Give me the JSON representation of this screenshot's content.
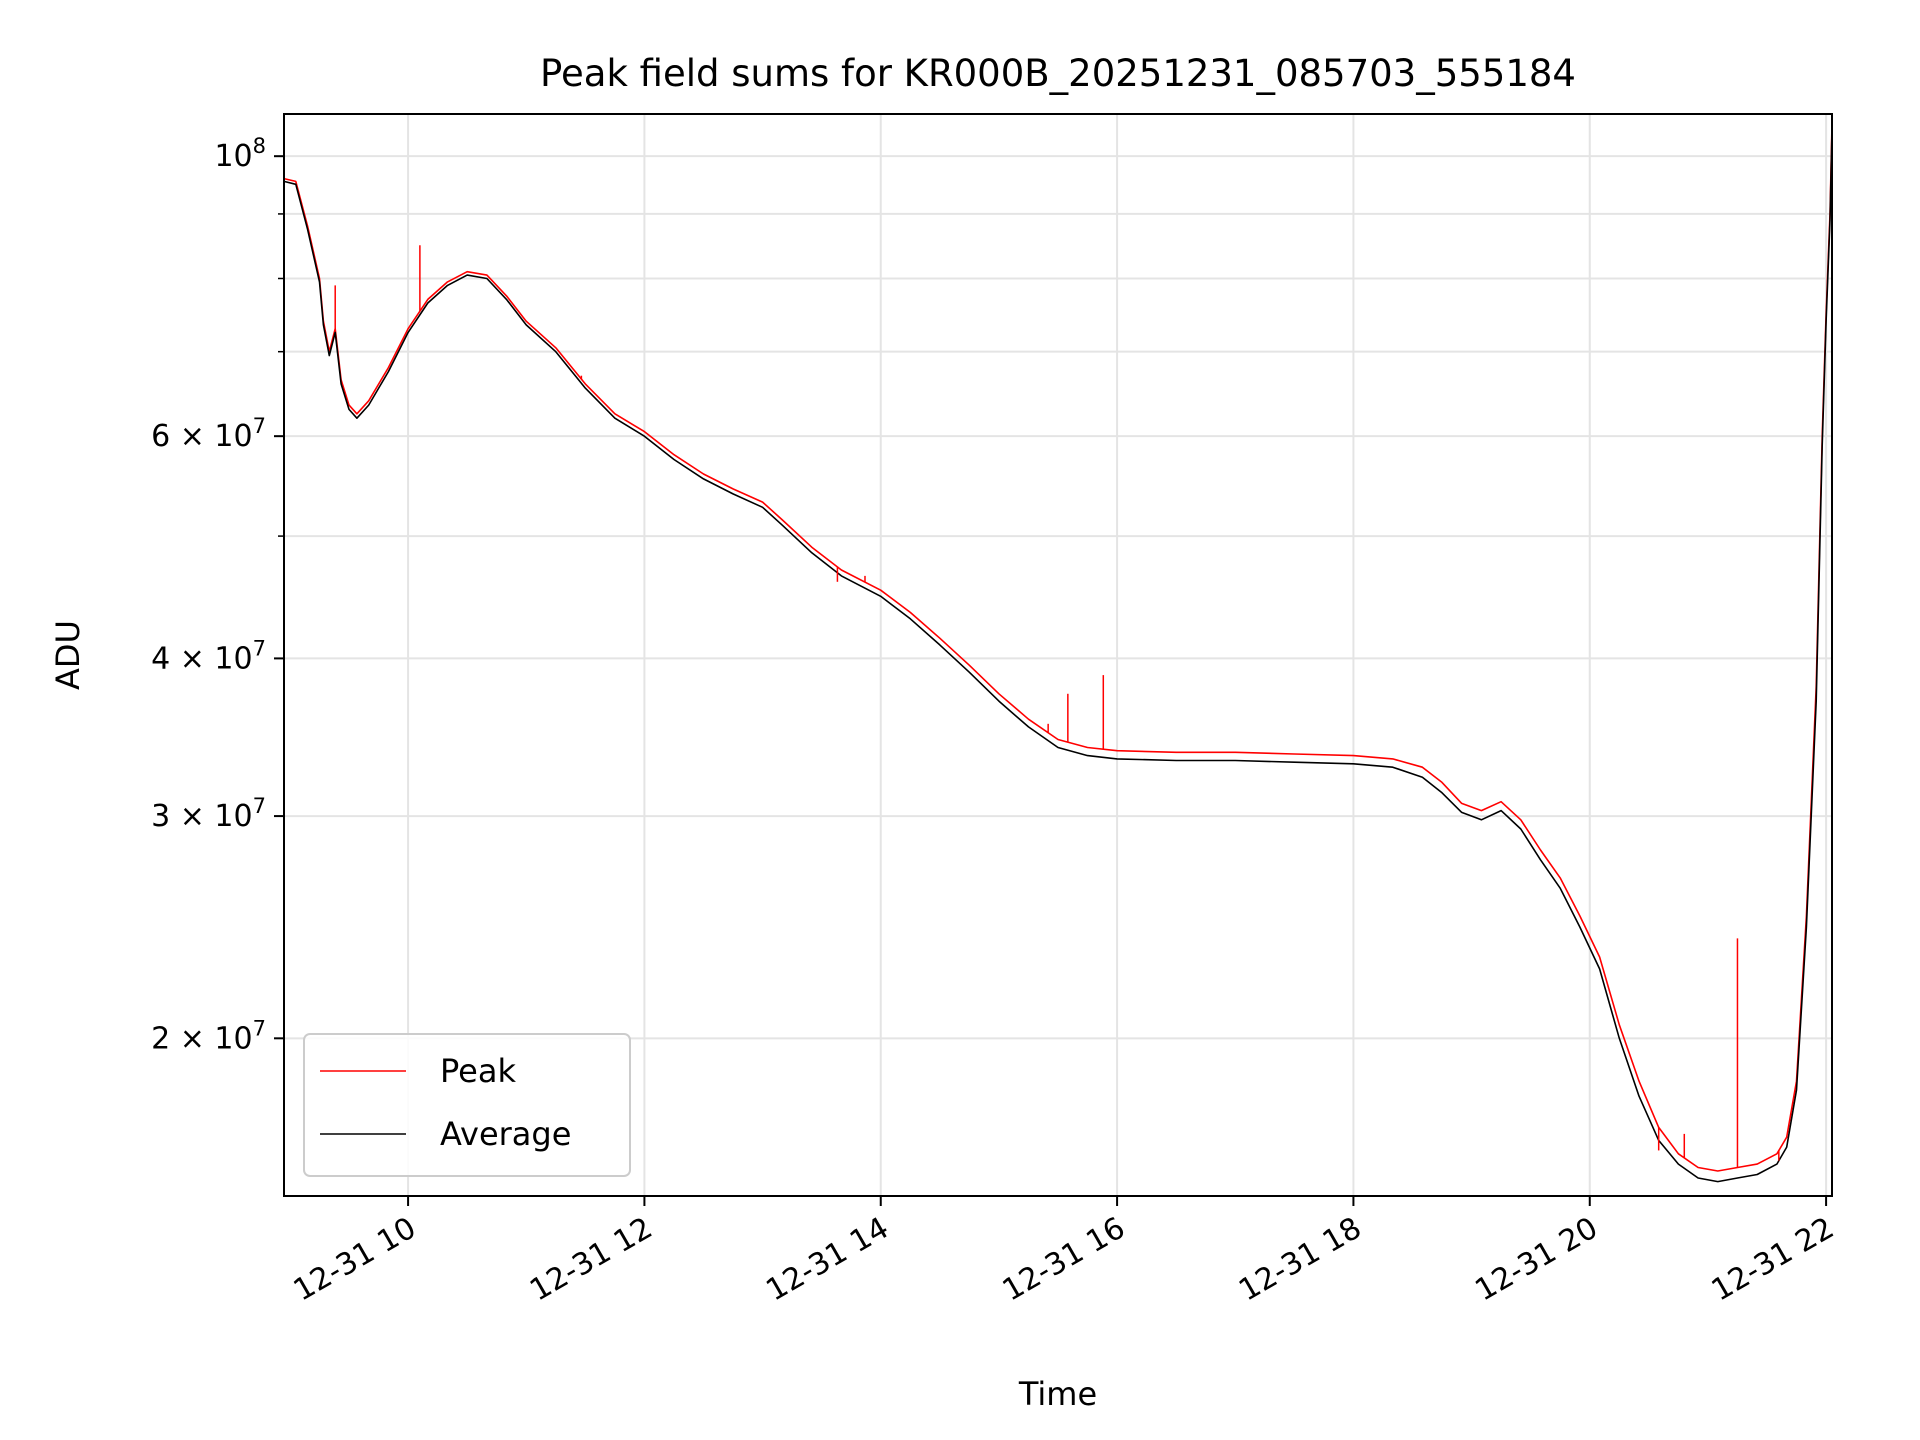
{
  "chart_data": {
    "type": "line",
    "title": "Peak field sums for KR000B_20251231_085703_555184",
    "xlabel": "Time",
    "ylabel": "ADU",
    "y_scale": "log",
    "ylim": [
      15000000,
      108000000
    ],
    "xlim": [
      "2025-12-31T08:57",
      "2025-12-31T22:03"
    ],
    "grid": true,
    "legend_position": "lower-left",
    "x_ticks": [
      {
        "value": "2025-12-31T10:00",
        "label": "12-31 10"
      },
      {
        "value": "2025-12-31T12:00",
        "label": "12-31 12"
      },
      {
        "value": "2025-12-31T14:00",
        "label": "12-31 14"
      },
      {
        "value": "2025-12-31T16:00",
        "label": "12-31 16"
      },
      {
        "value": "2025-12-31T18:00",
        "label": "12-31 18"
      },
      {
        "value": "2025-12-31T20:00",
        "label": "12-31 20"
      },
      {
        "value": "2025-12-31T22:00",
        "label": "12-31 22"
      }
    ],
    "y_ticks": [
      {
        "value": 20000000,
        "mantissa": "2",
        "exponent": "7"
      },
      {
        "value": 30000000,
        "mantissa": "3",
        "exponent": "7"
      },
      {
        "value": 40000000,
        "mantissa": "4",
        "exponent": "7"
      },
      {
        "value": 60000000,
        "mantissa": "6",
        "exponent": "7"
      },
      {
        "value": 100000000,
        "mantissa": "",
        "exponent": "8"
      }
    ],
    "y_minor_ticks": [
      50000000,
      70000000,
      80000000,
      90000000
    ],
    "series": [
      {
        "name": "Peak",
        "color": "#ff0000",
        "points": [
          [
            "2025-12-31T08:57",
            96000000
          ],
          [
            "2025-12-31T09:03",
            95500000
          ],
          [
            "2025-12-31T09:09",
            88000000
          ],
          [
            "2025-12-31T09:15",
            80000000
          ],
          [
            "2025-12-31T09:17",
            74000000
          ],
          [
            "2025-12-31T09:20",
            70000000
          ],
          [
            "2025-12-31T09:23",
            73000000
          ],
          [
            "2025-12-31T09:26",
            66500000
          ],
          [
            "2025-12-31T09:30",
            63500000
          ],
          [
            "2025-12-31T09:34",
            62500000
          ],
          [
            "2025-12-31T09:40",
            64000000
          ],
          [
            "2025-12-31T09:50",
            68000000
          ],
          [
            "2025-12-31T10:00",
            73000000
          ],
          [
            "2025-12-31T10:10",
            77000000
          ],
          [
            "2025-12-31T10:20",
            79500000
          ],
          [
            "2025-12-31T10:30",
            81000000
          ],
          [
            "2025-12-31T10:40",
            80500000
          ],
          [
            "2025-12-31T10:50",
            77500000
          ],
          [
            "2025-12-31T11:00",
            74000000
          ],
          [
            "2025-12-31T11:15",
            70500000
          ],
          [
            "2025-12-31T11:30",
            66000000
          ],
          [
            "2025-12-31T11:45",
            62500000
          ],
          [
            "2025-12-31T12:00",
            60500000
          ],
          [
            "2025-12-31T12:15",
            58000000
          ],
          [
            "2025-12-31T12:30",
            56000000
          ],
          [
            "2025-12-31T12:45",
            54500000
          ],
          [
            "2025-12-31T13:00",
            53200000
          ],
          [
            "2025-12-31T13:10",
            51500000
          ],
          [
            "2025-12-31T13:25",
            49000000
          ],
          [
            "2025-12-31T13:40",
            47000000
          ],
          [
            "2025-12-31T14:00",
            45300000
          ],
          [
            "2025-12-31T14:15",
            43500000
          ],
          [
            "2025-12-31T14:30",
            41500000
          ],
          [
            "2025-12-31T14:45",
            39500000
          ],
          [
            "2025-12-31T15:00",
            37500000
          ],
          [
            "2025-12-31T15:15",
            35800000
          ],
          [
            "2025-12-31T15:30",
            34500000
          ],
          [
            "2025-12-31T15:45",
            34000000
          ],
          [
            "2025-12-31T16:00",
            33800000
          ],
          [
            "2025-12-31T16:30",
            33700000
          ],
          [
            "2025-12-31T17:00",
            33700000
          ],
          [
            "2025-12-31T17:30",
            33600000
          ],
          [
            "2025-12-31T18:00",
            33500000
          ],
          [
            "2025-12-31T18:20",
            33300000
          ],
          [
            "2025-12-31T18:35",
            32800000
          ],
          [
            "2025-12-31T18:45",
            31900000
          ],
          [
            "2025-12-31T18:55",
            30700000
          ],
          [
            "2025-12-31T19:05",
            30300000
          ],
          [
            "2025-12-31T19:15",
            30800000
          ],
          [
            "2025-12-31T19:25",
            29800000
          ],
          [
            "2025-12-31T19:35",
            28200000
          ],
          [
            "2025-12-31T19:45",
            26800000
          ],
          [
            "2025-12-31T19:55",
            25000000
          ],
          [
            "2025-12-31T20:05",
            23200000
          ],
          [
            "2025-12-31T20:15",
            20500000
          ],
          [
            "2025-12-31T20:25",
            18500000
          ],
          [
            "2025-12-31T20:35",
            17000000
          ],
          [
            "2025-12-31T20:45",
            16200000
          ],
          [
            "2025-12-31T20:55",
            15800000
          ],
          [
            "2025-12-31T21:05",
            15700000
          ],
          [
            "2025-12-31T21:15",
            15800000
          ],
          [
            "2025-12-31T21:25",
            15900000
          ],
          [
            "2025-12-31T21:35",
            16200000
          ],
          [
            "2025-12-31T21:40",
            16700000
          ],
          [
            "2025-12-31T21:45",
            18500000
          ],
          [
            "2025-12-31T21:50",
            25000000
          ],
          [
            "2025-12-31T21:55",
            38000000
          ],
          [
            "2025-12-31T21:58",
            60000000
          ],
          [
            "2025-12-31T22:00",
            75000000
          ],
          [
            "2025-12-31T22:02",
            90000000
          ],
          [
            "2025-12-31T22:03",
            106000000
          ]
        ]
      },
      {
        "name": "Average",
        "color": "#000000",
        "points": [
          [
            "2025-12-31T08:57",
            95500000
          ],
          [
            "2025-12-31T09:03",
            95000000
          ],
          [
            "2025-12-31T09:09",
            87500000
          ],
          [
            "2025-12-31T09:15",
            79500000
          ],
          [
            "2025-12-31T09:17",
            73500000
          ],
          [
            "2025-12-31T09:20",
            69500000
          ],
          [
            "2025-12-31T09:23",
            72500000
          ],
          [
            "2025-12-31T09:26",
            66000000
          ],
          [
            "2025-12-31T09:30",
            63000000
          ],
          [
            "2025-12-31T09:34",
            62000000
          ],
          [
            "2025-12-31T09:40",
            63500000
          ],
          [
            "2025-12-31T09:50",
            67500000
          ],
          [
            "2025-12-31T10:00",
            72500000
          ],
          [
            "2025-12-31T10:10",
            76500000
          ],
          [
            "2025-12-31T10:20",
            79000000
          ],
          [
            "2025-12-31T10:30",
            80500000
          ],
          [
            "2025-12-31T10:40",
            80000000
          ],
          [
            "2025-12-31T10:50",
            77000000
          ],
          [
            "2025-12-31T11:00",
            73500000
          ],
          [
            "2025-12-31T11:15",
            70000000
          ],
          [
            "2025-12-31T11:30",
            65500000
          ],
          [
            "2025-12-31T11:45",
            62000000
          ],
          [
            "2025-12-31T12:00",
            60000000
          ],
          [
            "2025-12-31T12:15",
            57500000
          ],
          [
            "2025-12-31T12:30",
            55500000
          ],
          [
            "2025-12-31T12:45",
            54000000
          ],
          [
            "2025-12-31T13:00",
            52700000
          ],
          [
            "2025-12-31T13:10",
            51000000
          ],
          [
            "2025-12-31T13:25",
            48500000
          ],
          [
            "2025-12-31T13:40",
            46500000
          ],
          [
            "2025-12-31T14:00",
            44800000
          ],
          [
            "2025-12-31T14:15",
            43000000
          ],
          [
            "2025-12-31T14:30",
            41000000
          ],
          [
            "2025-12-31T14:45",
            39000000
          ],
          [
            "2025-12-31T15:00",
            37000000
          ],
          [
            "2025-12-31T15:15",
            35300000
          ],
          [
            "2025-12-31T15:30",
            34000000
          ],
          [
            "2025-12-31T15:45",
            33500000
          ],
          [
            "2025-12-31T16:00",
            33300000
          ],
          [
            "2025-12-31T16:30",
            33200000
          ],
          [
            "2025-12-31T17:00",
            33200000
          ],
          [
            "2025-12-31T17:30",
            33100000
          ],
          [
            "2025-12-31T18:00",
            33000000
          ],
          [
            "2025-12-31T18:20",
            32800000
          ],
          [
            "2025-12-31T18:35",
            32200000
          ],
          [
            "2025-12-31T18:45",
            31300000
          ],
          [
            "2025-12-31T18:55",
            30200000
          ],
          [
            "2025-12-31T19:05",
            29800000
          ],
          [
            "2025-12-31T19:15",
            30300000
          ],
          [
            "2025-12-31T19:25",
            29300000
          ],
          [
            "2025-12-31T19:35",
            27700000
          ],
          [
            "2025-12-31T19:45",
            26300000
          ],
          [
            "2025-12-31T19:55",
            24500000
          ],
          [
            "2025-12-31T20:05",
            22700000
          ],
          [
            "2025-12-31T20:15",
            20000000
          ],
          [
            "2025-12-31T20:25",
            18000000
          ],
          [
            "2025-12-31T20:35",
            16600000
          ],
          [
            "2025-12-31T20:45",
            15900000
          ],
          [
            "2025-12-31T20:55",
            15500000
          ],
          [
            "2025-12-31T21:05",
            15400000
          ],
          [
            "2025-12-31T21:15",
            15500000
          ],
          [
            "2025-12-31T21:25",
            15600000
          ],
          [
            "2025-12-31T21:35",
            15900000
          ],
          [
            "2025-12-31T21:40",
            16400000
          ],
          [
            "2025-12-31T21:45",
            18200000
          ],
          [
            "2025-12-31T21:50",
            24500000
          ],
          [
            "2025-12-31T21:55",
            37000000
          ],
          [
            "2025-12-31T21:58",
            59000000
          ],
          [
            "2025-12-31T22:00",
            74000000
          ],
          [
            "2025-12-31T22:02",
            89000000
          ],
          [
            "2025-12-31T22:03",
            105000000
          ]
        ]
      }
    ],
    "spikes": [
      [
        "2025-12-31T09:23",
        79000000
      ],
      [
        "2025-12-31T10:06",
        85000000
      ],
      [
        "2025-12-31T11:28",
        67000000
      ],
      [
        "2025-12-31T13:38",
        46000000
      ],
      [
        "2025-12-31T13:52",
        46500000
      ],
      [
        "2025-12-31T15:25",
        35500000
      ],
      [
        "2025-12-31T15:35",
        37500000
      ],
      [
        "2025-12-31T15:53",
        38800000
      ],
      [
        "2025-12-31T20:35",
        16300000
      ],
      [
        "2025-12-31T20:48",
        16800000
      ],
      [
        "2025-12-31T21:15",
        24000000
      ],
      [
        "2025-12-31T21:36",
        16000000
      ]
    ]
  }
}
